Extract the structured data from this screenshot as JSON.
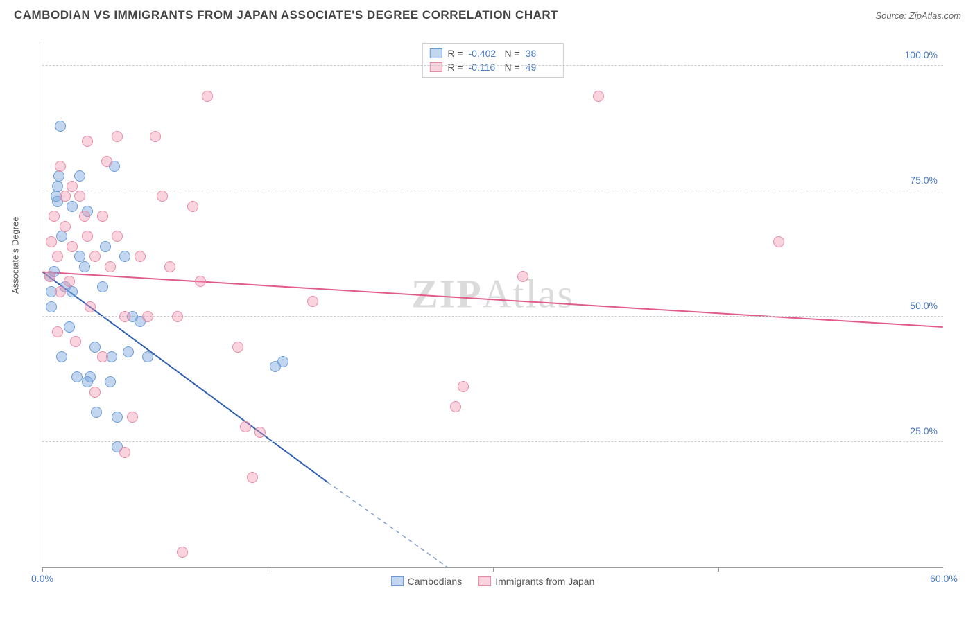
{
  "header": {
    "title": "CAMBODIAN VS IMMIGRANTS FROM JAPAN ASSOCIATE'S DEGREE CORRELATION CHART",
    "source": "Source: ZipAtlas.com"
  },
  "watermark": "ZIPAtlas",
  "chart": {
    "type": "scatter",
    "xlim": [
      0,
      60
    ],
    "ylim": [
      0,
      105
    ],
    "x_ticks": [
      0,
      15,
      30,
      45,
      60
    ],
    "x_tick_labels": [
      "0.0%",
      "",
      "",
      "",
      "60.0%"
    ],
    "y_ticks": [
      25,
      50,
      75,
      100
    ],
    "y_tick_labels": [
      "25.0%",
      "50.0%",
      "75.0%",
      "100.0%"
    ],
    "y_axis_label": "Associate's Degree",
    "background_color": "#ffffff",
    "grid_color": "#cccccc",
    "axis_color": "#999999",
    "tick_label_color": "#4a7bc4",
    "tick_fontsize": 14,
    "series": [
      {
        "name": "Cambodians",
        "fill": "rgba(120,165,220,0.45)",
        "stroke": "#6b9bd6",
        "trend_color": "#2e5fb0",
        "trend": {
          "x1": 0,
          "y1": 59,
          "x2": 19,
          "y2": 17,
          "dash_to_x": 27,
          "dash_to_y": 0
        },
        "r_value": "-0.402",
        "n_value": "38",
        "marker_radius": 8,
        "points": [
          [
            0.5,
            58
          ],
          [
            0.6,
            55
          ],
          [
            0.6,
            52
          ],
          [
            0.8,
            59
          ],
          [
            0.9,
            74
          ],
          [
            1.0,
            76
          ],
          [
            1.0,
            73
          ],
          [
            1.1,
            78
          ],
          [
            1.2,
            88
          ],
          [
            1.3,
            42
          ],
          [
            1.3,
            66
          ],
          [
            1.5,
            56
          ],
          [
            1.8,
            48
          ],
          [
            2.0,
            72
          ],
          [
            2.0,
            55
          ],
          [
            2.3,
            38
          ],
          [
            2.5,
            62
          ],
          [
            2.5,
            78
          ],
          [
            2.8,
            60
          ],
          [
            3.0,
            37
          ],
          [
            3.0,
            71
          ],
          [
            3.2,
            38
          ],
          [
            3.5,
            44
          ],
          [
            3.6,
            31
          ],
          [
            4.0,
            56
          ],
          [
            4.2,
            64
          ],
          [
            4.5,
            37
          ],
          [
            4.6,
            42
          ],
          [
            4.8,
            80
          ],
          [
            5.0,
            30
          ],
          [
            5.0,
            24
          ],
          [
            5.5,
            62
          ],
          [
            5.7,
            43
          ],
          [
            6.0,
            50
          ],
          [
            6.5,
            49
          ],
          [
            7.0,
            42
          ],
          [
            16.0,
            41
          ],
          [
            15.5,
            40
          ]
        ]
      },
      {
        "name": "Immigrants from Japan",
        "fill": "rgba(240,145,170,0.40)",
        "stroke": "#e88aa5",
        "trend_color": "#e05a8a",
        "trend": {
          "x1": 0,
          "y1": 59,
          "x2": 60,
          "y2": 48
        },
        "r_value": "-0.116",
        "n_value": "49",
        "marker_radius": 8,
        "points": [
          [
            0.5,
            58
          ],
          [
            0.6,
            65
          ],
          [
            0.8,
            70
          ],
          [
            1.0,
            62
          ],
          [
            1.0,
            47
          ],
          [
            1.2,
            80
          ],
          [
            1.2,
            55
          ],
          [
            1.5,
            74
          ],
          [
            1.5,
            68
          ],
          [
            1.8,
            57
          ],
          [
            2.0,
            64
          ],
          [
            2.0,
            76
          ],
          [
            2.2,
            45
          ],
          [
            2.5,
            74
          ],
          [
            2.8,
            70
          ],
          [
            3.0,
            85
          ],
          [
            3.0,
            66
          ],
          [
            3.2,
            52
          ],
          [
            3.5,
            62
          ],
          [
            3.5,
            35
          ],
          [
            4.0,
            42
          ],
          [
            4.0,
            70
          ],
          [
            4.3,
            81
          ],
          [
            4.5,
            60
          ],
          [
            5.0,
            86
          ],
          [
            5.0,
            66
          ],
          [
            5.5,
            50
          ],
          [
            5.5,
            23
          ],
          [
            6.0,
            30
          ],
          [
            6.5,
            62
          ],
          [
            7.0,
            50
          ],
          [
            7.5,
            86
          ],
          [
            8.0,
            74
          ],
          [
            8.5,
            60
          ],
          [
            9.0,
            50
          ],
          [
            9.3,
            3
          ],
          [
            10.0,
            72
          ],
          [
            10.5,
            57
          ],
          [
            11.0,
            94
          ],
          [
            13.0,
            44
          ],
          [
            13.5,
            28
          ],
          [
            14.0,
            18
          ],
          [
            14.5,
            27
          ],
          [
            18.0,
            53
          ],
          [
            27.5,
            32
          ],
          [
            28.0,
            36
          ],
          [
            32.0,
            58
          ],
          [
            37.0,
            94
          ],
          [
            49.0,
            65
          ]
        ]
      }
    ],
    "stats_box": {
      "r_label": "R =",
      "n_label": "N ="
    },
    "bottom_legend": {
      "items": [
        "Cambodians",
        "Immigrants from Japan"
      ]
    }
  }
}
